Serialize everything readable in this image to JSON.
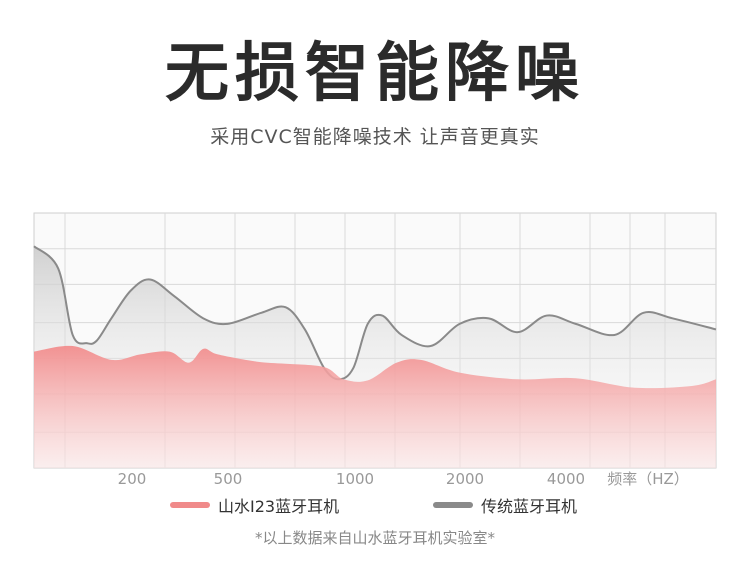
{
  "header": {
    "title": "无损智能降噪",
    "subtitle": "采用CVC智能降噪技术 让声音更真实"
  },
  "chart_data": {
    "type": "area",
    "x_ticks": [
      "200",
      "500",
      "1000",
      "2000",
      "4000"
    ],
    "x_unit_label": "频率（HZ）",
    "grid": true,
    "legend_position": "bottom",
    "series": [
      {
        "name": "山水I23蓝牙耳机",
        "color": "#f08a8a",
        "x": [
          0,
          40,
          80,
          110,
          140,
          160,
          175,
          190,
          230,
          260,
          300,
          320,
          345,
          375,
          400,
          440,
          500,
          560,
          620,
          680,
          705
        ],
        "y": [
          2.1,
          2.2,
          1.95,
          2.05,
          2.1,
          1.9,
          2.15,
          2.05,
          1.92,
          1.88,
          1.82,
          1.6,
          1.58,
          1.9,
          1.95,
          1.72,
          1.6,
          1.62,
          1.45,
          1.48,
          1.6
        ]
      },
      {
        "name": "传统蓝牙耳机",
        "color": "#888888",
        "x": [
          0,
          25,
          40,
          55,
          65,
          80,
          100,
          120,
          145,
          175,
          200,
          235,
          260,
          280,
          300,
          315,
          330,
          345,
          360,
          380,
          410,
          440,
          470,
          500,
          530,
          560,
          600,
          630,
          660,
          705
        ],
        "y": [
          4.0,
          3.6,
          2.4,
          2.25,
          2.3,
          2.7,
          3.2,
          3.4,
          3.1,
          2.7,
          2.6,
          2.8,
          2.9,
          2.5,
          1.8,
          1.6,
          1.8,
          2.6,
          2.75,
          2.4,
          2.2,
          2.6,
          2.7,
          2.45,
          2.75,
          2.6,
          2.4,
          2.8,
          2.7,
          2.5
        ]
      }
    ]
  },
  "footnote": "*以上数据来自山水蓝牙耳机实验室*"
}
